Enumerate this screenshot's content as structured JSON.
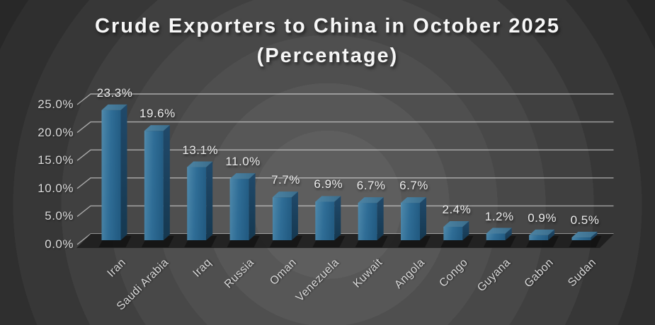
{
  "title": "Crude Exporters to China in October 2025 (Percentage)",
  "chart_data": {
    "type": "bar",
    "style": "3d-column",
    "title": "Crude Exporters to China in October 2025 (Percentage)",
    "categories": [
      "Iran",
      "Saudi Arabia",
      "Iraq",
      "Russia",
      "Oman",
      "Venezuela",
      "Kuwait",
      "Angola",
      "Congo",
      "Guyana",
      "Gabon",
      "Sudan"
    ],
    "values": [
      23.3,
      19.6,
      13.1,
      11.0,
      7.7,
      6.9,
      6.7,
      6.7,
      2.4,
      1.2,
      0.9,
      0.5
    ],
    "value_labels": [
      "23.3%",
      "19.6%",
      "13.1%",
      "11.0%",
      "7.7%",
      "6.9%",
      "6.7%",
      "6.7%",
      "2.4%",
      "1.2%",
      "0.9%",
      "0.5%"
    ],
    "y_tick_values": [
      0,
      5,
      10,
      15,
      20,
      25
    ],
    "y_tick_labels": [
      "0.0%",
      "5.0%",
      "10.0%",
      "15.0%",
      "20.0%",
      "25.0%"
    ],
    "ylim": [
      0,
      25
    ],
    "xlabel": "",
    "ylabel": "",
    "legend": "none",
    "grid": "horizontal",
    "colors": {
      "bar_front_highlight": "#5a93b3",
      "bar_front_light": "#4a85a8",
      "bar_front": "#2f6d96",
      "bar_front_dark": "#235c83",
      "bar_top_light": "#4d84a4",
      "bar_top_dark": "#3a6d8c",
      "bar_side_light": "#20496a",
      "bar_side_dark": "#153850",
      "gridline": "rgba(255,255,255,0.55)",
      "floor": "#1d1d1d",
      "title_text": "#f7f7f7",
      "axis_text": "#dcdcdc",
      "label_text": "#ededed",
      "background_center": "#5e5e5e",
      "background_outer": "#272727"
    }
  }
}
